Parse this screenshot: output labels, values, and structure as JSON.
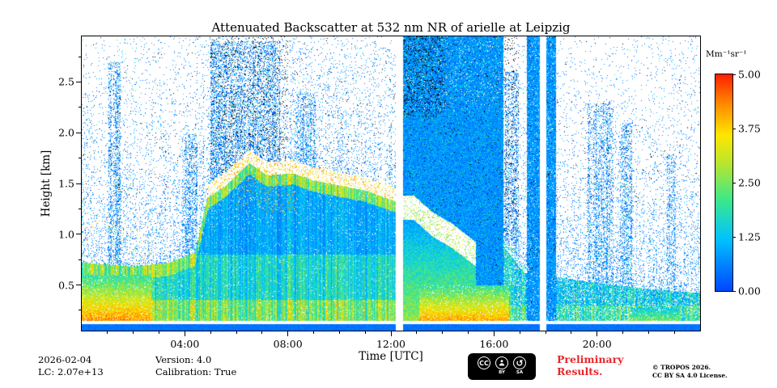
{
  "meta": {
    "date": "2026-02-04",
    "lc": "LC: 2.07e+13",
    "version": "Version: 4.0",
    "calibration": "Calibration: True",
    "preliminary_line1": "Preliminary",
    "preliminary_line2": "Results.",
    "preliminary_color": "#e8262a",
    "copyright_line1": "© TROPOS 2026.",
    "copyright_line2": "CC BY SA 4.0 License.",
    "badge": {
      "cc": "CC",
      "by": "BY",
      "sa": "SA"
    }
  },
  "chart_data": {
    "type": "heatmap",
    "title": "Attenuated Backscatter at 532 nm NR of arielle at Leipzig",
    "xlabel": "Time [UTC]",
    "ylabel": "Height [km]",
    "x_range_hours": [
      0,
      24
    ],
    "x_major_ticks": [
      {
        "hour": 4,
        "label": "04:00"
      },
      {
        "hour": 8,
        "label": "08:00"
      },
      {
        "hour": 12,
        "label": "12:00"
      },
      {
        "hour": 16,
        "label": "16:00"
      },
      {
        "hour": 20,
        "label": "20:00"
      }
    ],
    "x_minor_step_hours": 1,
    "y_range_km": [
      0.05,
      2.95
    ],
    "y_major_ticks": [
      {
        "km": 0.5,
        "label": "0.5"
      },
      {
        "km": 1.0,
        "label": "1.0"
      },
      {
        "km": 1.5,
        "label": "1.5"
      },
      {
        "km": 2.0,
        "label": "2.0"
      },
      {
        "km": 2.5,
        "label": "2.5"
      }
    ],
    "y_minor_step_km": 0.25,
    "colorbar": {
      "label": "Mm⁻¹sr⁻¹",
      "min": 0,
      "max": 5,
      "ticks": [
        {
          "value": 5.0,
          "label": "5.00"
        },
        {
          "value": 3.75,
          "label": "3.75"
        },
        {
          "value": 2.5,
          "label": "2.50"
        },
        {
          "value": 1.25,
          "label": "1.25"
        },
        {
          "value": 0.0,
          "label": "0.00"
        }
      ],
      "colormap_stops": [
        [
          0,
          "#0045ff"
        ],
        [
          0.24,
          "#00c3ff"
        ],
        [
          0.42,
          "#3ce88c"
        ],
        [
          0.58,
          "#b4e632"
        ],
        [
          0.72,
          "#ffe600"
        ],
        [
          0.86,
          "#ff8c00"
        ],
        [
          1,
          "#ff2000"
        ]
      ]
    },
    "render": {
      "seed": 987654321,
      "t_max": 24,
      "h_min": 0.05,
      "h_max": 2.95,
      "gaps": [
        [
          12.18,
          12.46
        ],
        [
          17.78,
          18.02
        ]
      ],
      "bottom_bar_top": 0.115,
      "attenuation_bands": [
        [
          12.46,
          16.38
        ],
        [
          17.28,
          17.78
        ],
        [
          18.02,
          18.42
        ]
      ],
      "layer_top_early": [
        [
          0,
          0.72
        ],
        [
          2,
          0.68
        ],
        [
          3.4,
          0.72
        ],
        [
          4.4,
          0.82
        ],
        [
          4.9,
          1.38
        ],
        [
          5.6,
          1.5
        ],
        [
          6.5,
          1.72
        ],
        [
          7.2,
          1.6
        ],
        [
          8.2,
          1.62
        ],
        [
          9,
          1.55
        ],
        [
          10,
          1.5
        ],
        [
          11,
          1.45
        ],
        [
          12.46,
          1.32
        ]
      ],
      "layer_top_late": [
        [
          16.38,
          0.95
        ],
        [
          17.2,
          0.68
        ],
        [
          18.42,
          0.58
        ],
        [
          20,
          0.52
        ],
        [
          22,
          0.46
        ],
        [
          24,
          0.42
        ]
      ],
      "cloud_stripe_start": 4.9,
      "cloud_stripe_thickness": 0.11,
      "rain_cloud_line": [
        [
          12.9,
          1.28
        ],
        [
          13.6,
          1.12
        ],
        [
          14.4,
          1.0
        ],
        [
          15.3,
          0.82
        ]
      ],
      "ground_hot": [
        [
          0,
          2.7,
          0.6,
          5
        ],
        [
          13.1,
          16.6,
          0.5,
          5
        ],
        [
          21.3,
          23.2,
          0.28,
          3.6
        ]
      ],
      "noise_columns": [
        [
          1.05,
          1.5,
          2.7
        ],
        [
          3.9,
          4.5,
          2.0
        ],
        [
          5.0,
          7.7,
          2.9
        ],
        [
          8.3,
          9.1,
          2.4
        ],
        [
          16.4,
          16.95,
          2.6
        ],
        [
          19.6,
          20.65,
          2.3
        ],
        [
          20.9,
          21.35,
          2.1
        ],
        [
          22.7,
          23.05,
          1.8
        ]
      ],
      "black_zones": [
        [
          5.0,
          8.0,
          1.6,
          2.95
        ],
        [
          12.5,
          14.1,
          2.15,
          2.95
        ],
        [
          16.4,
          16.95,
          1.0,
          2.95
        ]
      ]
    }
  }
}
